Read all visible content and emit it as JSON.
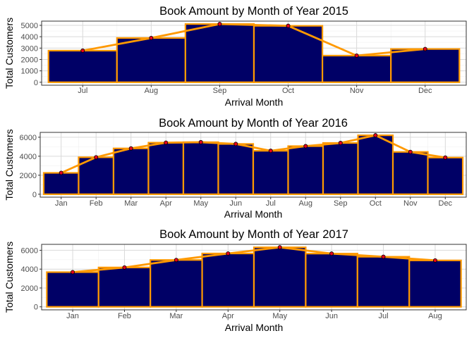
{
  "colors": {
    "bar_fill": "#000066",
    "bar_stroke": "#FF9900",
    "line": "#FF9900",
    "point_fill": "#E8001C",
    "point_stroke": "#000000",
    "panel_border": "#333333",
    "grid_major": "#d9d9d9",
    "grid_minor": "#f0f0f0"
  },
  "chart_data": [
    {
      "type": "bar",
      "title": "Book Amount by Month of Year 2015",
      "xlabel": "Arrival Month",
      "ylabel": "Total Customers",
      "categories": [
        "Jul",
        "Aug",
        "Sep",
        "Oct",
        "Nov",
        "Dec"
      ],
      "values": [
        2776,
        3889,
        5114,
        4957,
        2340,
        2920
      ],
      "yticks": [
        0,
        1000,
        2000,
        3000,
        4000,
        5000
      ],
      "ylim": [
        -260,
        5370
      ],
      "grid": true,
      "overlay": "line+points"
    },
    {
      "type": "bar",
      "title": "Book Amount by Month of Year 2016",
      "xlabel": "Arrival Month",
      "ylabel": "Total Customers",
      "categories": [
        "Jan",
        "Feb",
        "Mar",
        "Apr",
        "May",
        "Jun",
        "Jul",
        "Aug",
        "Sep",
        "Oct",
        "Nov",
        "Dec"
      ],
      "values": [
        2248,
        3891,
        4824,
        5428,
        5478,
        5292,
        4572,
        5063,
        5394,
        6203,
        4454,
        3860
      ],
      "yticks": [
        0,
        2000,
        4000,
        6000
      ],
      "ylim": [
        -310,
        6510
      ],
      "grid": true,
      "overlay": "line+points"
    },
    {
      "type": "bar",
      "title": "Book Amount by Month of Year 2017",
      "xlabel": "Arrival Month",
      "ylabel": "Total Customers",
      "categories": [
        "Jan",
        "Feb",
        "Mar",
        "Apr",
        "May",
        "Jun",
        "Jul",
        "Aug"
      ],
      "values": [
        3681,
        4177,
        4970,
        5661,
        6313,
        5647,
        5313,
        4925
      ],
      "yticks": [
        0,
        2000,
        4000,
        6000
      ],
      "ylim": [
        -320,
        6630
      ],
      "grid": true,
      "overlay": "line+points"
    }
  ]
}
